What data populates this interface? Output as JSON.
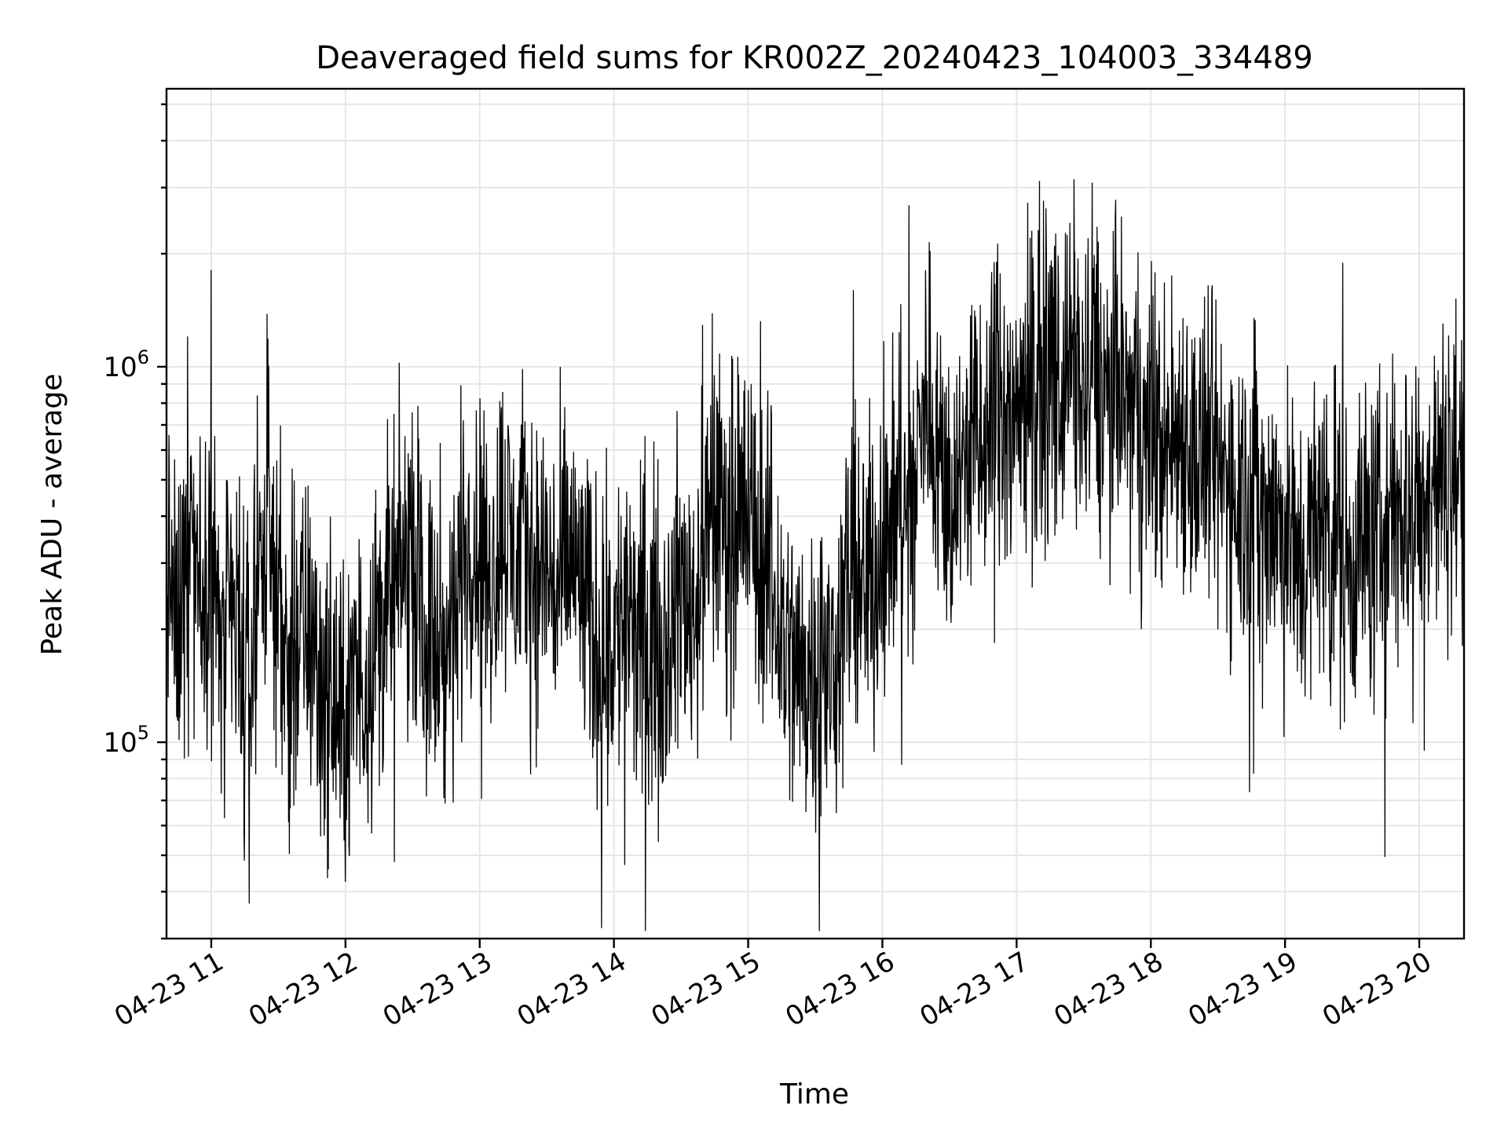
{
  "chart_data": {
    "type": "line",
    "title": "Deaveraged field sums for KR002Z_20240423_104003_334489",
    "xlabel": "Time",
    "ylabel": "Peak ADU - average",
    "y_scale": "log",
    "grid": true,
    "x_range": [
      "2024-04-23 10:40",
      "2024-04-23 20:20"
    ],
    "ylim": [
      30000,
      5500000
    ],
    "x_ticks": [
      {
        "value": "2024-04-23 11:00",
        "label": "04-23 11"
      },
      {
        "value": "2024-04-23 12:00",
        "label": "04-23 12"
      },
      {
        "value": "2024-04-23 13:00",
        "label": "04-23 13"
      },
      {
        "value": "2024-04-23 14:00",
        "label": "04-23 14"
      },
      {
        "value": "2024-04-23 15:00",
        "label": "04-23 15"
      },
      {
        "value": "2024-04-23 16:00",
        "label": "04-23 16"
      },
      {
        "value": "2024-04-23 17:00",
        "label": "04-23 17"
      },
      {
        "value": "2024-04-23 18:00",
        "label": "04-23 18"
      },
      {
        "value": "2024-04-23 19:00",
        "label": "04-23 19"
      },
      {
        "value": "2024-04-23 20:00",
        "label": "04-23 20"
      }
    ],
    "y_ticks": [
      {
        "value": 100000,
        "base": "10",
        "exp": "5"
      },
      {
        "value": 1000000,
        "base": "10",
        "exp": "6"
      }
    ],
    "series": [
      {
        "color": "#000000",
        "points": [
          [
            "2024-04-23 10:40",
            320000
          ],
          [
            "2024-04-23 10:45",
            180000
          ],
          [
            "2024-04-23 10:50",
            480000
          ],
          [
            "2024-04-23 10:55",
            260000
          ],
          [
            "2024-04-23 11:00",
            340000
          ],
          [
            "2024-04-23 11:05",
            160000
          ],
          [
            "2024-04-23 11:10",
            220000
          ],
          [
            "2024-04-23 11:15",
            120000
          ],
          [
            "2024-04-23 11:20",
            250000
          ],
          [
            "2024-04-23 11:25",
            380000
          ],
          [
            "2024-04-23 11:30",
            260000
          ],
          [
            "2024-04-23 11:35",
            150000
          ],
          [
            "2024-04-23 11:40",
            200000
          ],
          [
            "2024-04-23 11:45",
            180000
          ],
          [
            "2024-04-23 11:50",
            140000
          ],
          [
            "2024-04-23 11:55",
            120000
          ],
          [
            "2024-04-23 12:00",
            110000
          ],
          [
            "2024-04-23 12:05",
            140000
          ],
          [
            "2024-04-23 12:10",
            160000
          ],
          [
            "2024-04-23 12:15",
            210000
          ],
          [
            "2024-04-23 12:20",
            230000
          ],
          [
            "2024-04-23 12:25",
            280000
          ],
          [
            "2024-04-23 12:30",
            340000
          ],
          [
            "2024-04-23 12:35",
            200000
          ],
          [
            "2024-04-23 12:40",
            180000
          ],
          [
            "2024-04-23 12:45",
            160000
          ],
          [
            "2024-04-23 12:50",
            250000
          ],
          [
            "2024-04-23 12:55",
            380000
          ],
          [
            "2024-04-23 13:00",
            330000
          ],
          [
            "2024-04-23 13:05",
            260000
          ],
          [
            "2024-04-23 13:10",
            420000
          ],
          [
            "2024-04-23 13:15",
            300000
          ],
          [
            "2024-04-23 13:20",
            350000
          ],
          [
            "2024-04-23 13:25",
            280000
          ],
          [
            "2024-04-23 13:30",
            300000
          ],
          [
            "2024-04-23 13:35",
            240000
          ],
          [
            "2024-04-23 13:40",
            320000
          ],
          [
            "2024-04-23 13:45",
            260000
          ],
          [
            "2024-04-23 13:50",
            200000
          ],
          [
            "2024-04-23 13:55",
            180000
          ],
          [
            "2024-04-23 14:00",
            190000
          ],
          [
            "2024-04-23 14:05",
            220000
          ],
          [
            "2024-04-23 14:10",
            170000
          ],
          [
            "2024-04-23 14:15",
            210000
          ],
          [
            "2024-04-23 14:20",
            180000
          ],
          [
            "2024-04-23 14:25",
            200000
          ],
          [
            "2024-04-23 14:30",
            250000
          ],
          [
            "2024-04-23 14:35",
            230000
          ],
          [
            "2024-04-23 14:40",
            300000
          ],
          [
            "2024-04-23 14:45",
            420000
          ],
          [
            "2024-04-23 14:50",
            380000
          ],
          [
            "2024-04-23 14:55",
            450000
          ],
          [
            "2024-04-23 15:00",
            400000
          ],
          [
            "2024-04-23 15:05",
            320000
          ],
          [
            "2024-04-23 15:10",
            260000
          ],
          [
            "2024-04-23 15:15",
            200000
          ],
          [
            "2024-04-23 15:20",
            160000
          ],
          [
            "2024-04-23 15:25",
            150000
          ],
          [
            "2024-04-23 15:30",
            170000
          ],
          [
            "2024-04-23 15:35",
            140000
          ],
          [
            "2024-04-23 15:40",
            200000
          ],
          [
            "2024-04-23 15:45",
            260000
          ],
          [
            "2024-04-23 15:50",
            240000
          ],
          [
            "2024-04-23 15:55",
            280000
          ],
          [
            "2024-04-23 16:00",
            320000
          ],
          [
            "2024-04-23 16:05",
            400000
          ],
          [
            "2024-04-23 16:10",
            380000
          ],
          [
            "2024-04-23 16:15",
            500000
          ],
          [
            "2024-04-23 16:20",
            900000
          ],
          [
            "2024-04-23 16:25",
            600000
          ],
          [
            "2024-04-23 16:30",
            450000
          ],
          [
            "2024-04-23 16:35",
            520000
          ],
          [
            "2024-04-23 16:40",
            650000
          ],
          [
            "2024-04-23 16:45",
            560000
          ],
          [
            "2024-04-23 16:50",
            800000
          ],
          [
            "2024-04-23 16:55",
            700000
          ],
          [
            "2024-04-23 17:00",
            750000
          ],
          [
            "2024-04-23 17:05",
            950000
          ],
          [
            "2024-04-23 17:10",
            850000
          ],
          [
            "2024-04-23 17:15",
            1000000
          ],
          [
            "2024-04-23 17:20",
            900000
          ],
          [
            "2024-04-23 17:25",
            1100000
          ],
          [
            "2024-04-23 17:30",
            800000
          ],
          [
            "2024-04-23 17:35",
            950000
          ],
          [
            "2024-04-23 17:40",
            850000
          ],
          [
            "2024-04-23 17:45",
            900000
          ],
          [
            "2024-04-23 17:50",
            750000
          ],
          [
            "2024-04-23 17:55",
            650000
          ],
          [
            "2024-04-23 18:00",
            700000
          ],
          [
            "2024-04-23 18:05",
            600000
          ],
          [
            "2024-04-23 18:10",
            650000
          ],
          [
            "2024-04-23 18:15",
            700000
          ],
          [
            "2024-04-23 18:20",
            550000
          ],
          [
            "2024-04-23 18:25",
            600000
          ],
          [
            "2024-04-23 18:30",
            500000
          ],
          [
            "2024-04-23 18:35",
            520000
          ],
          [
            "2024-04-23 18:40",
            480000
          ],
          [
            "2024-04-23 18:45",
            450000
          ],
          [
            "2024-04-23 18:50",
            420000
          ],
          [
            "2024-04-23 18:55",
            400000
          ],
          [
            "2024-04-23 19:00",
            350000
          ],
          [
            "2024-04-23 19:05",
            300000
          ],
          [
            "2024-04-23 19:10",
            320000
          ],
          [
            "2024-04-23 19:15",
            380000
          ],
          [
            "2024-04-23 19:20",
            420000
          ],
          [
            "2024-04-23 19:25",
            350000
          ],
          [
            "2024-04-23 19:30",
            300000
          ],
          [
            "2024-04-23 19:35",
            360000
          ],
          [
            "2024-04-23 19:40",
            330000
          ],
          [
            "2024-04-23 19:45",
            400000
          ],
          [
            "2024-04-23 19:50",
            380000
          ],
          [
            "2024-04-23 19:55",
            450000
          ],
          [
            "2024-04-23 20:00",
            420000
          ],
          [
            "2024-04-23 20:05",
            500000
          ],
          [
            "2024-04-23 20:10",
            480000
          ],
          [
            "2024-04-23 20:15",
            550000
          ],
          [
            "2024-04-23 20:20",
            520000
          ]
        ]
      }
    ]
  }
}
